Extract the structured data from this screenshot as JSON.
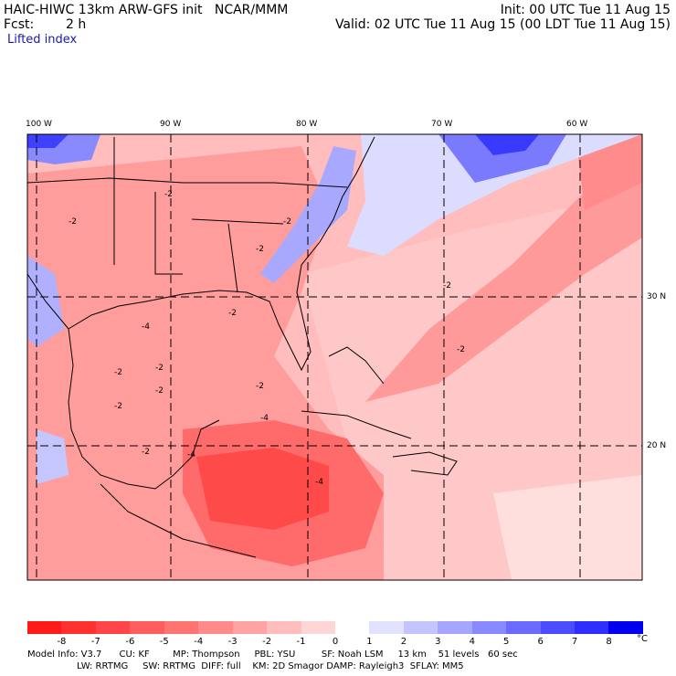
{
  "header": {
    "title_left": "HAIC-HIWC 13km ARW-GFS init   NCAR/MMM",
    "fcst_label": "Fcst:",
    "fcst_value": "2 h",
    "init": "Init: 00 UTC Tue 11 Aug 15",
    "valid": "Valid: 02 UTC Tue 11 Aug 15 (00 LDT Tue 11 Aug 15)",
    "field": "Lifted index"
  },
  "map": {
    "lon_labels": [
      "100 W",
      "90 W",
      "80 W",
      "70 W",
      "60 W"
    ],
    "lat_labels": [
      "30 N",
      "20 N"
    ],
    "contour_labels": [
      "-2",
      "-4"
    ]
  },
  "colorbar": {
    "ticks": [
      "-8",
      "-7",
      "-6",
      "-5",
      "-4",
      "-3",
      "-2",
      "-1",
      "0",
      "1",
      "2",
      "3",
      "4",
      "5",
      "6",
      "7",
      "8"
    ],
    "unit": "°C",
    "colors": [
      "#ff1a1a",
      "#ff3030",
      "#ff4545",
      "#ff5c5c",
      "#ff7373",
      "#ff8a8a",
      "#ffa3a3",
      "#ffbdbd",
      "#ffd6d6",
      "#ffffff",
      "#e2e2ff",
      "#c4c4ff",
      "#a6a6ff",
      "#8888ff",
      "#6a6aff",
      "#4c4cff",
      "#2e2eff",
      "#0000ee"
    ]
  },
  "footer": {
    "line1": "Model Info: V3.7      CU: KF        MP: Thompson     PBL: YSU         SF: Noah LSM     13 km    51 levels   60 sec",
    "line2": "                 LW: RRTMG     SW: RRTMG  DIFF: full    KM: 2D Smagor DAMP: Rayleigh3  SFLAY: MM5"
  }
}
